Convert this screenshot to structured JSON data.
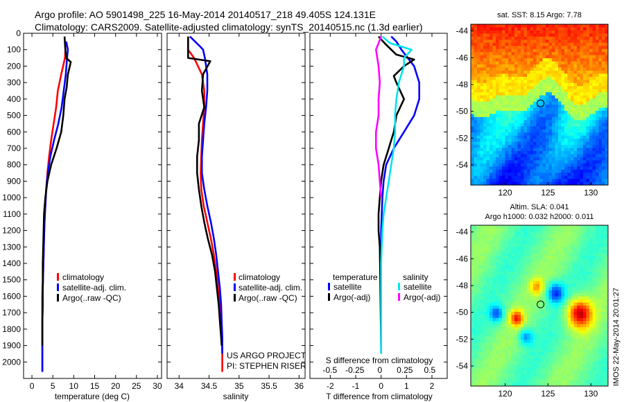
{
  "title_line1": "Argo profile: AO 5901498_225 16-May-2014 20140517_218 49.405S 124.131E",
  "title_line2": "Climatology: CARS2009. Satellite-adjusted climatology: synTS_20140515.nc (1.3d earlier)",
  "panel1": {
    "xlabel": "temperature (deg C)"
  },
  "panel2": {
    "xlabel": "salinity"
  },
  "panel3": {
    "xlabel_top": "S difference from climatology",
    "xlabel": "T difference from climatology"
  },
  "legend12": {
    "items": [
      "climatology",
      "satellite-adj. clim.",
      "Argo(..raw -QC)"
    ]
  },
  "legend3": {
    "temperature_header": "temperature",
    "salinity_header": "salinity",
    "items_t": [
      "satellite",
      "Argo(-adj)"
    ],
    "items_s": [
      "satellite",
      "Argo(-adj)"
    ]
  },
  "credit": {
    "line1": "US ARGO PROJECT",
    "line2": "PI: STEPHEN RISER"
  },
  "map1": {
    "title": "sat. SST: 8.15 Argo: 7.78"
  },
  "map2": {
    "title1": "Altim. SLA: 0.041",
    "title2": "Argo h1000: 0.032 h2000: 0.011"
  },
  "timestamp": "IMOS 22-May-2014 20:01:27",
  "colors": {
    "climatology": "#ff0000",
    "satellite": "#0000ff",
    "argo": "#000000",
    "sat_s": "#00e5ee",
    "argo_s": "#ff00ff"
  },
  "chart_data": [
    {
      "type": "line",
      "xlabel": "temperature (deg C)",
      "ylabel": "",
      "xlim": [
        -2,
        31
      ],
      "ylim": [
        2100,
        0
      ],
      "xticks": [
        0,
        5,
        10,
        15,
        20,
        25,
        30
      ],
      "yticks": [
        0,
        100,
        200,
        300,
        400,
        500,
        600,
        700,
        800,
        900,
        1000,
        1100,
        1200,
        1300,
        1400,
        1500,
        1600,
        1700,
        1800,
        1900,
        2000
      ],
      "series": [
        {
          "name": "climatology",
          "x": [
            7.9,
            8.0,
            7.9,
            7.0,
            6.2,
            5.8,
            5.2,
            4.6,
            4.1,
            3.7,
            3.4,
            3.2,
            3.0,
            2.9,
            2.8,
            2.7,
            2.6,
            2.6,
            2.5,
            2.5,
            2.5,
            2.5
          ],
          "y": [
            50,
            100,
            150,
            250,
            350,
            450,
            550,
            650,
            750,
            850,
            950,
            1050,
            1150,
            1250,
            1350,
            1450,
            1550,
            1650,
            1750,
            1850,
            1950,
            2060
          ]
        },
        {
          "name": "satellite-adj. clim.",
          "x": [
            8.2,
            8.6,
            8.4,
            8.1,
            7.6,
            7.1,
            6.3,
            5.3,
            4.4,
            3.8,
            3.4,
            3.2,
            3.0,
            2.9,
            2.8,
            2.7,
            2.6,
            2.6,
            2.5,
            2.5,
            2.5,
            2.5
          ],
          "y": [
            50,
            100,
            150,
            250,
            350,
            450,
            550,
            650,
            750,
            850,
            950,
            1050,
            1150,
            1250,
            1350,
            1450,
            1550,
            1650,
            1750,
            1850,
            1950,
            2060
          ]
        },
        {
          "name": "Argo(..raw -QC)",
          "x": [
            7.8,
            8.0,
            8.2,
            9.3,
            8.6,
            8.3,
            7.8,
            7.5,
            7.0,
            5.9,
            4.6,
            3.7,
            3.2,
            2.9,
            2.8,
            2.7,
            2.6,
            2.6,
            2.5,
            2.5,
            2.5,
            2.5
          ],
          "y": [
            20,
            100,
            150,
            175,
            250,
            330,
            400,
            500,
            600,
            700,
            800,
            900,
            1000,
            1100,
            1200,
            1300,
            1400,
            1500,
            1600,
            1700,
            1800,
            1900
          ]
        }
      ]
    },
    {
      "type": "line",
      "xlabel": "salinity",
      "ylabel": "",
      "xlim": [
        33.8,
        36.1
      ],
      "ylim": [
        2100,
        0
      ],
      "xticks": [
        34,
        34.5,
        35,
        35.5,
        36
      ],
      "yticks": [
        0,
        100,
        200,
        300,
        400,
        500,
        600,
        700,
        800,
        900,
        1000,
        1100,
        1200,
        1300,
        1400,
        1500,
        1600,
        1700,
        1800,
        1900,
        2000
      ],
      "series": [
        {
          "name": "climatology",
          "x": [
            34.15,
            34.15,
            34.25,
            34.38,
            34.42,
            34.42,
            34.4,
            34.38,
            34.37,
            34.36,
            34.37,
            34.41,
            34.47,
            34.53,
            34.58,
            34.62,
            34.65,
            34.68,
            34.7,
            34.71,
            34.72,
            34.72
          ],
          "y": [
            20,
            100,
            150,
            250,
            350,
            450,
            550,
            650,
            750,
            850,
            950,
            1050,
            1150,
            1250,
            1350,
            1450,
            1550,
            1650,
            1750,
            1850,
            1950,
            2060
          ]
        },
        {
          "name": "satellite-adj. clim.",
          "x": [
            34.18,
            34.35,
            34.4,
            34.43,
            34.47,
            34.47,
            34.45,
            34.42,
            34.4,
            34.38,
            34.38,
            34.42,
            34.47,
            34.53,
            34.58,
            34.62,
            34.65,
            34.68,
            34.7,
            34.71,
            34.72,
            34.72
          ],
          "y": [
            20,
            80,
            100,
            150,
            250,
            350,
            450,
            550,
            650,
            750,
            850,
            950,
            1050,
            1150,
            1250,
            1350,
            1450,
            1550,
            1650,
            1750,
            1850,
            1950
          ]
        },
        {
          "name": "Argo(..raw -QC)",
          "x": [
            34.15,
            34.15,
            34.52,
            34.4,
            34.38,
            34.42,
            34.33,
            34.33,
            34.3,
            34.3,
            34.33,
            34.37,
            34.42,
            34.48,
            34.55,
            34.6,
            34.63,
            34.66,
            34.68,
            34.7,
            34.71
          ],
          "y": [
            20,
            150,
            170,
            250,
            350,
            450,
            550,
            650,
            750,
            850,
            950,
            1050,
            1150,
            1250,
            1350,
            1450,
            1550,
            1650,
            1750,
            1850,
            1900
          ]
        }
      ]
    },
    {
      "type": "line",
      "xlabel": "T difference from climatology",
      "xlabel_top": "S difference from climatology",
      "ylabel": "",
      "xlim": [
        -2.8,
        2.6
      ],
      "ylim": [
        2100,
        0
      ],
      "xticks": [
        -2,
        -1,
        0,
        1,
        2
      ],
      "xticks_top": [
        -0.5,
        -0.25,
        0,
        0.25,
        0.5
      ],
      "series": [
        {
          "name": "temperature satellite",
          "x": [
            0.4,
            0.6,
            0.8,
            1.3,
            1.5,
            1.5,
            1.3,
            0.9,
            0.5,
            0.2,
            0.1,
            0.05,
            0,
            0,
            0,
            0,
            0,
            0
          ],
          "y": [
            20,
            50,
            100,
            200,
            300,
            400,
            500,
            600,
            700,
            800,
            900,
            1000,
            1200,
            1400,
            1600,
            1800,
            1900,
            1950
          ]
        },
        {
          "name": "temperature Argo(-adj)",
          "x": [
            -0.1,
            0.2,
            0.4,
            0.6,
            1.3,
            0.9,
            0.5,
            0.6,
            0.9,
            0.6,
            0.5,
            0.4,
            0.3,
            0.1,
            0,
            -0.05,
            -0.1,
            -0.1,
            -0.05,
            0
          ],
          "y": [
            20,
            70,
            100,
            130,
            160,
            200,
            260,
            300,
            400,
            500,
            600,
            650,
            700,
            800,
            900,
            1000,
            1100,
            1200,
            1300,
            1900
          ]
        },
        {
          "name": "salinity satellite",
          "x": [
            0.05,
            0.35,
            1.2,
            0.9,
            0.9,
            0.7,
            0.6,
            0.55,
            0.55,
            0.5,
            0.4,
            0.3,
            0.2,
            0.1,
            0.05,
            0,
            0,
            0,
            0
          ],
          "y": [
            20,
            60,
            100,
            150,
            200,
            300,
            400,
            500,
            600,
            700,
            800,
            900,
            1000,
            1100,
            1200,
            1400,
            1600,
            1800,
            1950
          ]
        },
        {
          "name": "salinity Argo(-adj)",
          "x": [
            0,
            -0.1,
            -0.2,
            -0.1,
            -0.05,
            -0.1,
            -0.1,
            -0.2,
            -0.2,
            -0.1,
            -0.05,
            0
          ],
          "y": [
            20,
            60,
            100,
            200,
            300,
            400,
            500,
            600,
            700,
            800,
            900,
            1000
          ]
        }
      ]
    },
    {
      "type": "heatmap",
      "title": "sat. SST: 8.15 Argo: 7.78",
      "xlim": [
        116,
        132
      ],
      "ylim": [
        -55.5,
        -43.5
      ],
      "xticks": [
        120,
        125,
        130
      ],
      "yticks": [
        -44,
        -46,
        -48,
        -50,
        -52,
        -54
      ],
      "marker": {
        "x": 124.131,
        "y": -49.405
      }
    },
    {
      "type": "heatmap",
      "title": "Altim. SLA: 0.041 Argo h1000: 0.032 h2000: 0.011",
      "xlim": [
        116,
        132
      ],
      "ylim": [
        -55.5,
        -43.5
      ],
      "xticks": [
        120,
        125,
        130
      ],
      "yticks": [
        -44,
        -46,
        -48,
        -50,
        -52,
        -54
      ],
      "marker": {
        "x": 124.131,
        "y": -49.405
      }
    }
  ]
}
